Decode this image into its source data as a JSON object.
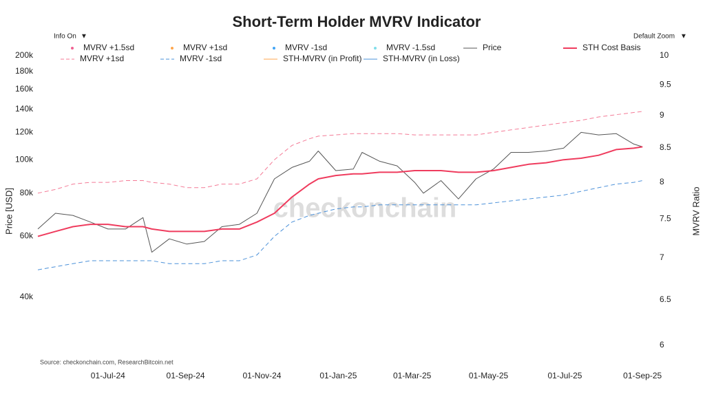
{
  "chart_data": {
    "type": "line",
    "title": "Short-Term Holder MVRV Indicator",
    "controls": {
      "info": "Info On",
      "zoom": "Default Zoom",
      "arrow": "▼"
    },
    "watermark": "checkonchain",
    "source": "Source: checkonchain.com, ResearchBitcoin.net",
    "ylabel": "Price [USD]",
    "y2label": "MVRV Ratio",
    "log_y": true,
    "log_y2": true,
    "xlim": [
      "2024-05-06",
      "2025-09-02"
    ],
    "xticks": [
      {
        "value": "2024-07-01",
        "label": "01-Jul-24"
      },
      {
        "value": "2024-09-01",
        "label": "01-Sep-24"
      },
      {
        "value": "2024-11-01",
        "label": "01-Nov-24"
      },
      {
        "value": "2025-01-01",
        "label": "01-Jan-25"
      },
      {
        "value": "2025-03-01",
        "label": "01-Mar-25"
      },
      {
        "value": "2025-05-01",
        "label": "01-May-25"
      },
      {
        "value": "2025-07-01",
        "label": "01-Jul-25"
      },
      {
        "value": "2025-09-01",
        "label": "01-Sep-25"
      }
    ],
    "ylim": [
      40000,
      200000
    ],
    "yticks": [
      {
        "value": 40000,
        "label": "40k"
      },
      {
        "value": 60000,
        "label": "60k"
      },
      {
        "value": 80000,
        "label": "80k"
      },
      {
        "value": 100000,
        "label": "100k"
      },
      {
        "value": 120000,
        "label": "120k"
      },
      {
        "value": 140000,
        "label": "140k"
      },
      {
        "value": 160000,
        "label": "160k"
      },
      {
        "value": 180000,
        "label": "180k"
      },
      {
        "value": 200000,
        "label": "200k"
      }
    ],
    "y2lim": [
      6,
      10
    ],
    "y2ticks": [
      6,
      6.5,
      7,
      7.5,
      8,
      8.5,
      9,
      9.5,
      10
    ],
    "x": [
      "2024-05-06",
      "2024-05-20",
      "2024-06-03",
      "2024-06-17",
      "2024-07-01",
      "2024-07-15",
      "2024-07-29",
      "2024-08-05",
      "2024-08-19",
      "2024-09-02",
      "2024-09-16",
      "2024-09-30",
      "2024-10-14",
      "2024-10-28",
      "2024-11-11",
      "2024-11-25",
      "2024-12-09",
      "2024-12-16",
      "2024-12-30",
      "2025-01-13",
      "2025-01-20",
      "2025-02-03",
      "2025-02-17",
      "2025-03-03",
      "2025-03-10",
      "2025-03-24",
      "2025-04-07",
      "2025-04-21",
      "2025-05-05",
      "2025-05-19",
      "2025-06-02",
      "2025-06-16",
      "2025-06-30",
      "2025-07-14",
      "2025-07-28",
      "2025-08-11",
      "2025-08-25",
      "2025-09-01"
    ],
    "series": [
      {
        "name": "MVRV +1.5sd",
        "color": "#f06292",
        "style": "dot",
        "axis": "y2",
        "values": [
          null,
          null,
          null,
          null,
          null,
          null,
          null,
          null,
          null,
          null,
          null,
          null,
          null,
          null,
          null,
          null,
          null,
          null,
          null,
          null,
          null,
          null,
          null,
          null,
          null,
          null,
          null,
          null,
          null,
          null,
          null,
          null,
          null,
          null,
          null,
          null,
          null,
          null
        ]
      },
      {
        "name": "MVRV +1sd",
        "color": "#ffa64d",
        "style": "dot",
        "axis": "y2",
        "values": [
          null,
          null,
          null,
          null,
          null,
          null,
          null,
          null,
          null,
          null,
          null,
          null,
          null,
          null,
          null,
          null,
          null,
          null,
          null,
          null,
          null,
          null,
          null,
          null,
          null,
          null,
          null,
          null,
          null,
          null,
          null,
          null,
          null,
          null,
          null,
          null,
          null,
          null
        ]
      },
      {
        "name": "MVRV -1sd",
        "color": "#42a5f5",
        "style": "dot",
        "axis": "y2",
        "values": [
          null,
          null,
          null,
          null,
          null,
          null,
          null,
          null,
          null,
          null,
          null,
          null,
          null,
          null,
          null,
          null,
          null,
          null,
          null,
          null,
          null,
          null,
          null,
          null,
          null,
          null,
          null,
          null,
          null,
          null,
          null,
          null,
          null,
          null,
          null,
          null,
          null,
          null
        ]
      },
      {
        "name": "MVRV -1.5sd",
        "color": "#80deea",
        "style": "dot",
        "axis": "y2",
        "values": [
          null,
          null,
          null,
          null,
          null,
          null,
          null,
          null,
          null,
          null,
          null,
          null,
          null,
          null,
          null,
          null,
          null,
          null,
          null,
          null,
          null,
          null,
          null,
          null,
          null,
          null,
          null,
          null,
          null,
          null,
          null,
          null,
          null,
          null,
          null,
          null,
          null,
          null
        ]
      },
      {
        "name": "Price",
        "color": "#555555",
        "style": "line",
        "values": [
          63000,
          70000,
          69000,
          66000,
          63000,
          63000,
          68000,
          54000,
          59000,
          57000,
          58000,
          64000,
          65000,
          70000,
          88000,
          95000,
          99000,
          106000,
          93000,
          94000,
          105000,
          99000,
          96000,
          86000,
          80000,
          87000,
          77000,
          88000,
          94000,
          105000,
          105000,
          106000,
          108000,
          120000,
          118000,
          119000,
          111000,
          109000
        ]
      },
      {
        "name": "STH Cost Basis",
        "color": "#ef3b5d",
        "style": "line",
        "width": 2,
        "values": [
          60000,
          62000,
          64000,
          65000,
          65000,
          64000,
          64000,
          63000,
          62000,
          62000,
          62000,
          63000,
          63000,
          66000,
          70000,
          78000,
          85000,
          88000,
          90000,
          91000,
          91000,
          92000,
          92000,
          93000,
          93000,
          93000,
          92000,
          92000,
          93000,
          95000,
          97000,
          98000,
          100000,
          101000,
          103000,
          107000,
          108000,
          109000
        ]
      },
      {
        "name": "MVRV +1sd",
        "color": "#f47a96",
        "style": "dash",
        "values": [
          80000,
          82000,
          85000,
          86000,
          86000,
          87000,
          87000,
          86000,
          85000,
          83000,
          83000,
          85000,
          85000,
          88000,
          100000,
          110000,
          115000,
          117000,
          118000,
          119000,
          119000,
          119000,
          119000,
          118000,
          118000,
          118000,
          118000,
          118000,
          120000,
          122000,
          124000,
          126000,
          128000,
          130000,
          133000,
          135000,
          137000,
          138000
        ]
      },
      {
        "name": "MVRV -1sd",
        "color": "#4a90d9",
        "style": "dash",
        "values": [
          48000,
          49000,
          50000,
          51000,
          51000,
          51000,
          51000,
          51000,
          50000,
          50000,
          50000,
          51000,
          51000,
          53000,
          60000,
          66000,
          69000,
          70000,
          72000,
          73000,
          73000,
          74000,
          74000,
          74000,
          74000,
          74000,
          74000,
          74000,
          75000,
          76000,
          77000,
          78000,
          79000,
          81000,
          83000,
          85000,
          86000,
          87000
        ]
      },
      {
        "name": "STH-MVRV (in Profit)",
        "color": "#ffa64d",
        "style": "line",
        "axis": "y2",
        "values": [
          null,
          null,
          null,
          null,
          null,
          null,
          null,
          null,
          null,
          null,
          null,
          null,
          null,
          null,
          null,
          null,
          null,
          null,
          null,
          null,
          null,
          null,
          null,
          null,
          null,
          null,
          null,
          null,
          null,
          null,
          null,
          null,
          null,
          null,
          null,
          null,
          null,
          null
        ]
      },
      {
        "name": "STH-MVRV (in Loss)",
        "color": "#4a90d9",
        "style": "line",
        "axis": "y2",
        "values": [
          null,
          null,
          null,
          null,
          null,
          null,
          null,
          null,
          null,
          null,
          null,
          null,
          null,
          null,
          null,
          null,
          null,
          null,
          null,
          null,
          null,
          null,
          null,
          null,
          null,
          null,
          null,
          null,
          null,
          null,
          null,
          null,
          null,
          null,
          null,
          null,
          null,
          null
        ]
      }
    ]
  }
}
